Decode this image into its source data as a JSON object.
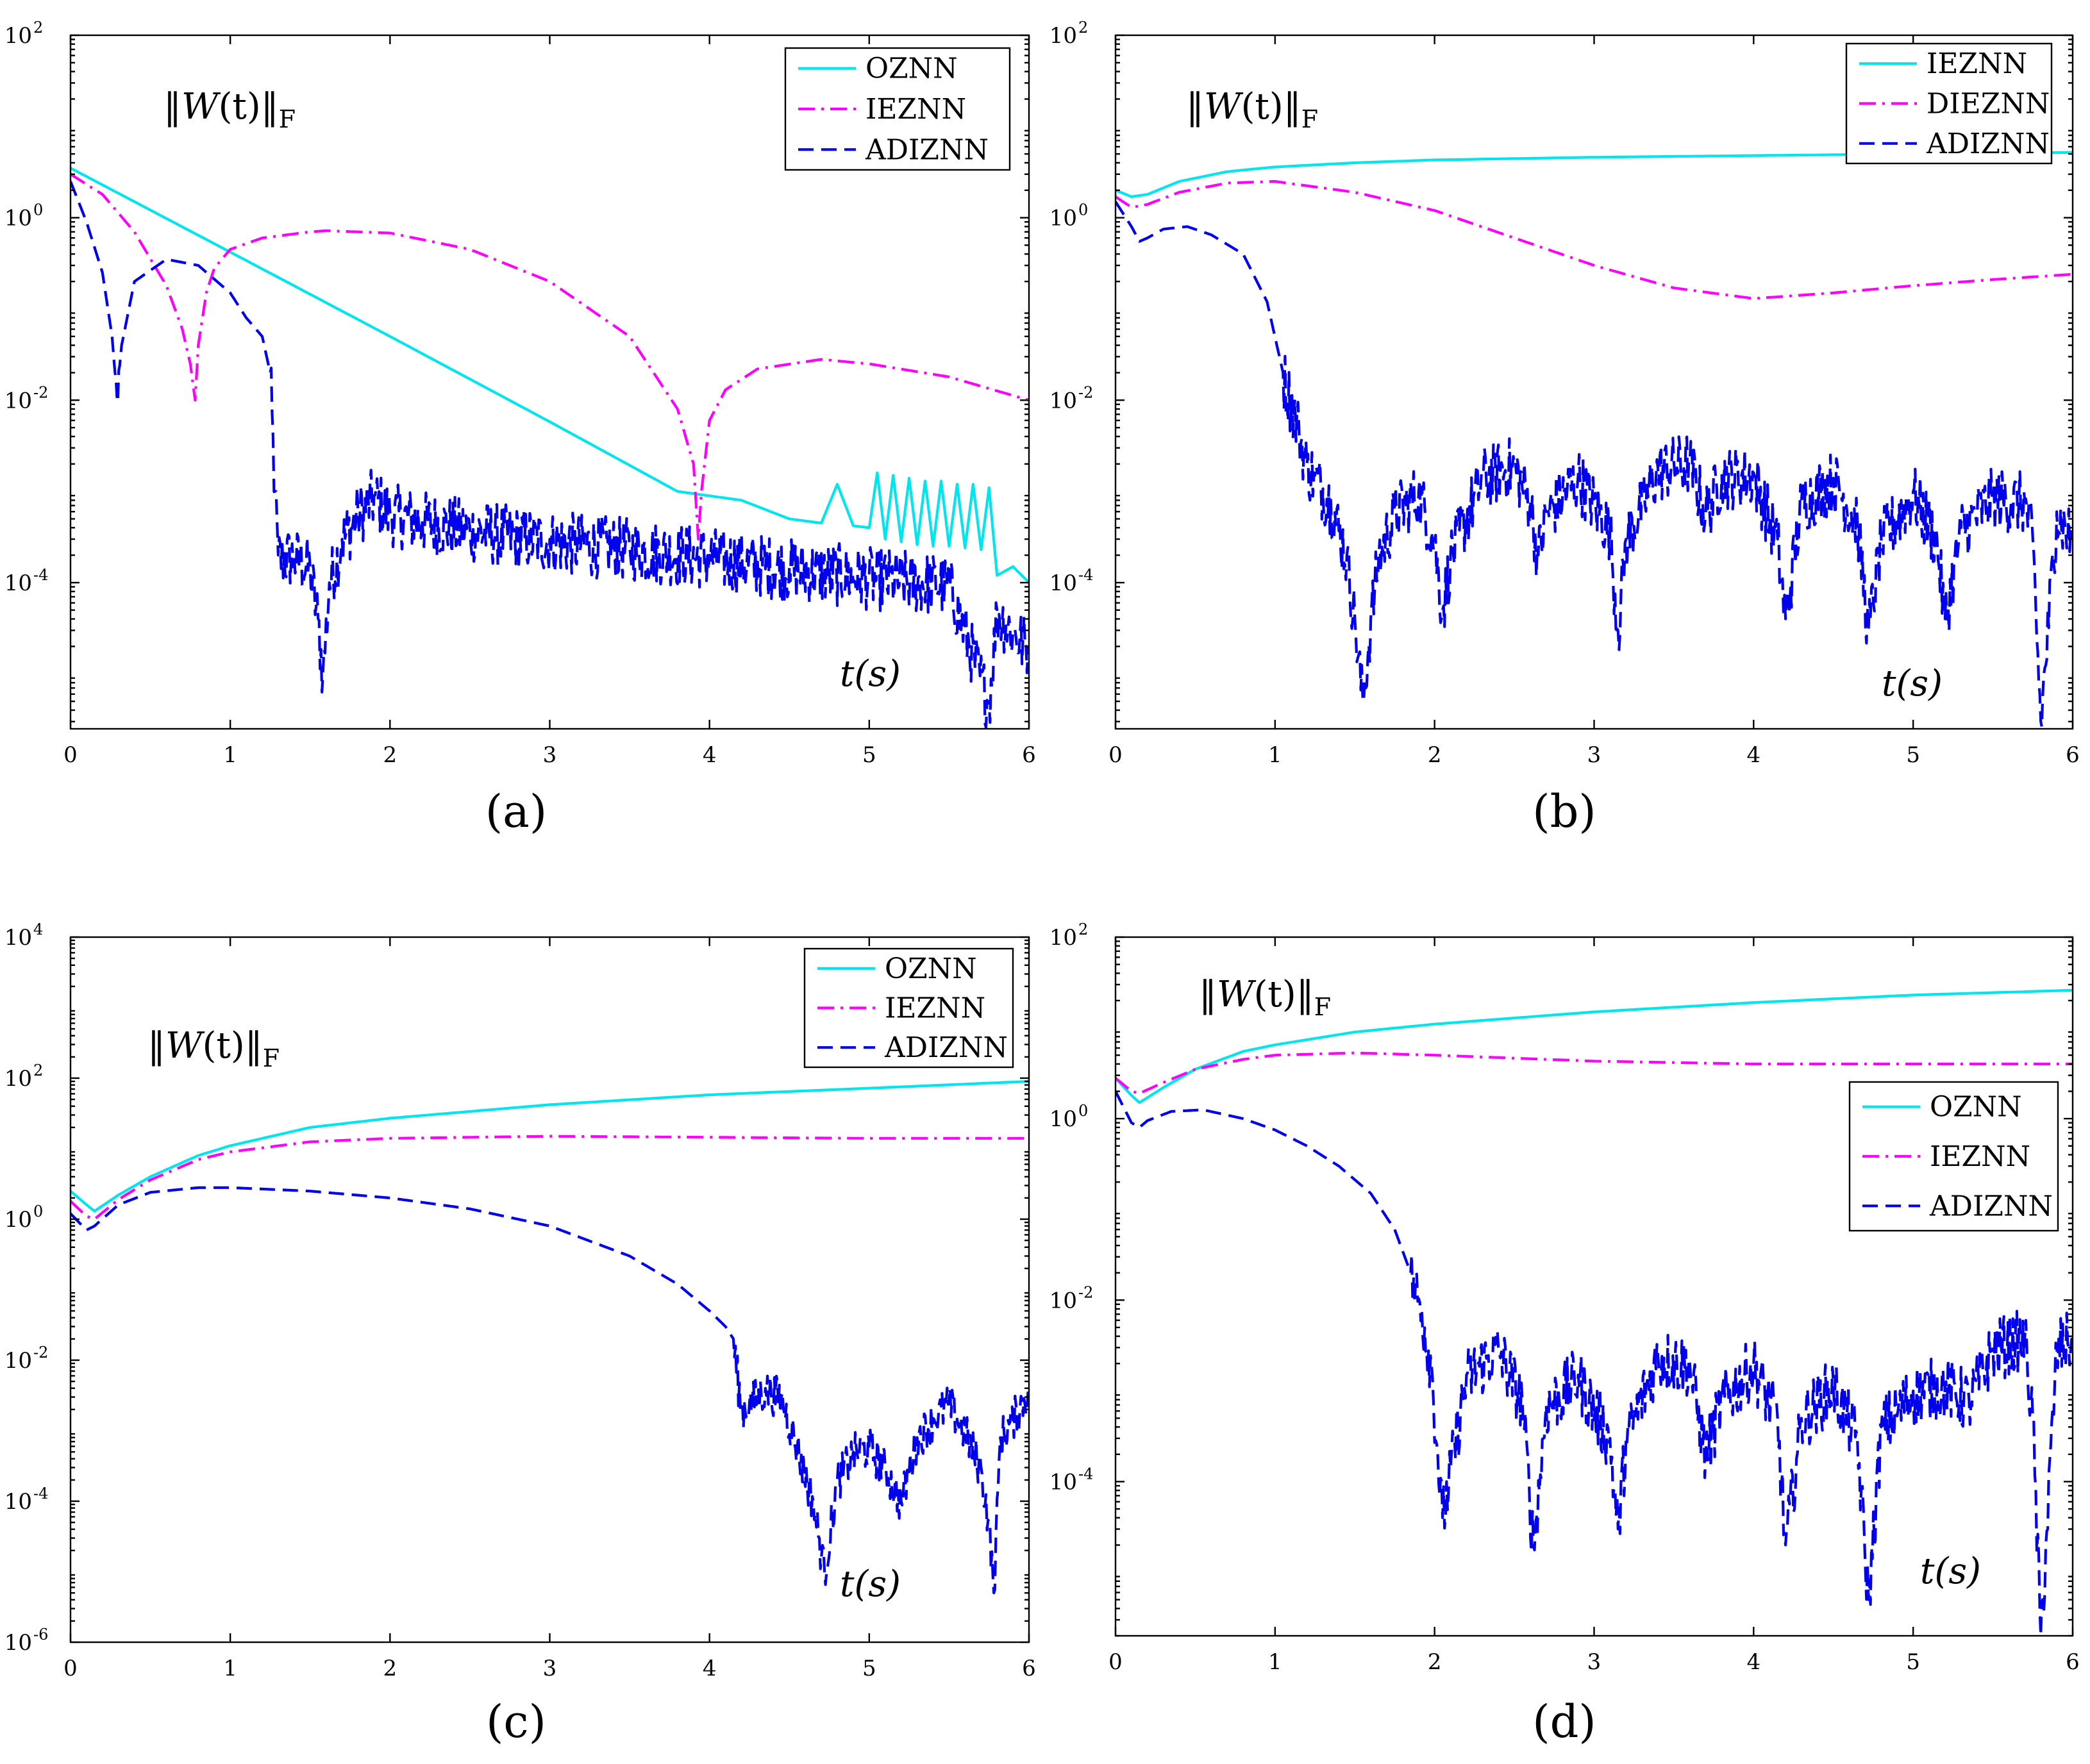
{
  "chart_data": [
    {
      "type": "line",
      "panel_label": "(a)",
      "y_scale": "log",
      "xlim": [
        0,
        6
      ],
      "ylim": [
        2.5e-06,
        100
      ],
      "x_ticks": [
        "0",
        "1",
        "2",
        "3",
        "4",
        "5",
        "6"
      ],
      "y_ticks": [
        {
          "base": "10",
          "exp": "2"
        },
        {
          "base": "10",
          "exp": "0"
        },
        {
          "base": "10",
          "exp": "-2"
        },
        {
          "base": "10",
          "exp": "-4"
        }
      ],
      "annotation": {
        "prefix": "‖",
        "var": "W",
        "arg": "(t)",
        "suffix": "‖",
        "sub": "F"
      },
      "time_label": "t(s)",
      "legend_position": "top-right",
      "series": [
        {
          "name": "OZNN",
          "color": "#00e5ee",
          "style": "solid",
          "x": [
            0,
            1,
            2,
            3,
            3.8,
            4.2,
            4.5,
            4.7,
            4.8,
            4.9,
            5.0,
            5.05,
            5.1,
            5.15,
            5.2,
            5.25,
            5.3,
            5.35,
            5.4,
            5.45,
            5.5,
            5.55,
            5.6,
            5.65,
            5.7,
            5.75,
            5.8,
            5.9,
            6.0
          ],
          "y": [
            3.5,
            0.42,
            0.05,
            0.0058,
            0.001,
            0.0008,
            0.0005,
            0.00045,
            0.0012,
            0.00042,
            0.0004,
            0.0016,
            0.0003,
            0.0015,
            0.00028,
            0.0014,
            0.00026,
            0.0013,
            0.00025,
            0.0013,
            0.00025,
            0.0012,
            0.00024,
            0.0012,
            0.00023,
            0.0011,
            0.00012,
            0.00015,
            0.0001
          ]
        },
        {
          "name": "IEZNN",
          "color": "#ff00ff",
          "style": "dashdot",
          "x": [
            0,
            0.2,
            0.4,
            0.6,
            0.7,
            0.75,
            0.78,
            0.8,
            0.85,
            0.9,
            1.0,
            1.2,
            1.5,
            1.6,
            2.0,
            2.5,
            3.0,
            3.5,
            3.8,
            3.9,
            3.93,
            3.95,
            4.0,
            4.1,
            4.3,
            4.7,
            5.0,
            5.5,
            6.0
          ],
          "y": [
            3.0,
            1.8,
            0.7,
            0.18,
            0.06,
            0.025,
            0.01,
            0.04,
            0.15,
            0.28,
            0.45,
            0.6,
            0.7,
            0.72,
            0.68,
            0.45,
            0.2,
            0.05,
            0.008,
            0.002,
            0.0003,
            0.001,
            0.006,
            0.013,
            0.022,
            0.028,
            0.025,
            0.018,
            0.01
          ]
        },
        {
          "name": "ADIZNN",
          "color": "#0000ee",
          "style": "dashed",
          "x": [
            0,
            0.1,
            0.2,
            0.26,
            0.29,
            0.32,
            0.4,
            0.6,
            0.8,
            1.0,
            1.1,
            1.2,
            1.25,
            1.28,
            1.3,
            1.4,
            1.5,
            1.55,
            1.58,
            1.62,
            1.7,
            1.8,
            1.9,
            2.0,
            2.2,
            2.5,
            3.0,
            3.5,
            4.0,
            4.5,
            5.0,
            5.5,
            5.75,
            5.8,
            5.9,
            6.0
          ],
          "y": [
            2.5,
            0.9,
            0.25,
            0.05,
            0.011,
            0.04,
            0.2,
            0.35,
            0.3,
            0.15,
            0.08,
            0.05,
            0.02,
            0.001,
            0.0002,
            0.0002,
            0.00015,
            4e-05,
            1e-05,
            0.0001,
            0.0003,
            0.0006,
            0.0009,
            0.0006,
            0.0005,
            0.0004,
            0.0003,
            0.00025,
            0.0002,
            0.00015,
            0.00012,
            0.0001,
            5e-06,
            5e-05,
            3e-05,
            2e-05
          ]
        }
      ],
      "noise": [
        0,
        0,
        0.7
      ]
    },
    {
      "type": "line",
      "panel_label": "(b)",
      "y_scale": "log",
      "xlim": [
        0,
        6
      ],
      "ylim": [
        2.5e-06,
        100
      ],
      "x_ticks": [
        "0",
        "1",
        "2",
        "3",
        "4",
        "5",
        "6"
      ],
      "y_ticks": [
        {
          "base": "10",
          "exp": "2"
        },
        {
          "base": "10",
          "exp": "0"
        },
        {
          "base": "10",
          "exp": "-2"
        },
        {
          "base": "10",
          "exp": "-4"
        }
      ],
      "annotation": {
        "prefix": "‖",
        "var": "W",
        "arg": "(t)",
        "suffix": "‖",
        "sub": "F"
      },
      "time_label": "t(s)",
      "legend_position": "top-right",
      "series": [
        {
          "name": "IEZNN",
          "color": "#00e5ee",
          "style": "solid",
          "x": [
            0,
            0.1,
            0.2,
            0.4,
            0.7,
            1.0,
            1.5,
            2.0,
            3.0,
            4.0,
            5.0,
            6.0
          ],
          "y": [
            2.0,
            1.7,
            1.8,
            2.5,
            3.2,
            3.6,
            4.0,
            4.3,
            4.6,
            4.8,
            5.0,
            5.2
          ]
        },
        {
          "name": "DIEZNN",
          "color": "#ff00ff",
          "style": "dashdot",
          "x": [
            0,
            0.1,
            0.2,
            0.4,
            0.7,
            1.0,
            1.5,
            2.0,
            2.5,
            3.0,
            3.5,
            4.0,
            4.5,
            5.0,
            5.5,
            6.0
          ],
          "y": [
            1.7,
            1.3,
            1.4,
            1.9,
            2.4,
            2.5,
            1.9,
            1.2,
            0.6,
            0.3,
            0.17,
            0.13,
            0.15,
            0.18,
            0.21,
            0.24
          ]
        },
        {
          "name": "ADIZNN",
          "color": "#0000ee",
          "style": "dashed",
          "x": [
            0,
            0.1,
            0.15,
            0.2,
            0.3,
            0.45,
            0.6,
            0.8,
            0.95,
            1.05,
            1.15,
            1.2,
            1.25,
            1.35,
            1.45,
            1.5,
            1.55,
            1.6,
            1.65,
            1.75,
            1.9,
            2.0,
            2.05,
            2.1,
            2.3,
            2.5,
            2.6,
            2.65,
            2.7,
            2.9,
            3.1,
            3.15,
            3.2,
            3.4,
            3.6,
            3.7,
            3.8,
            4.0,
            4.15,
            4.2,
            4.3,
            4.5,
            4.65,
            4.72,
            4.8,
            5.0,
            5.15,
            5.2,
            5.3,
            5.5,
            5.7,
            5.75,
            5.8,
            5.9,
            6.0
          ],
          "y": [
            1.5,
            0.8,
            0.55,
            0.6,
            0.75,
            0.8,
            0.65,
            0.4,
            0.12,
            0.02,
            0.005,
            0.002,
            0.0015,
            0.0008,
            0.0002,
            4e-05,
            5e-06,
            4e-05,
            0.0002,
            0.0006,
            0.001,
            0.0003,
            5e-05,
            0.0002,
            0.0015,
            0.002,
            0.0008,
            0.0002,
            0.0006,
            0.0015,
            0.0004,
            3e-05,
            0.0003,
            0.0018,
            0.0022,
            0.0006,
            0.0015,
            0.0016,
            0.0003,
            4e-05,
            0.0008,
            0.0014,
            0.0005,
            3e-05,
            0.0003,
            0.001,
            0.0003,
            4e-05,
            0.0004,
            0.0009,
            0.0008,
            0.0003,
            3e-06,
            0.0006,
            0.0003
          ]
        }
      ],
      "noise": [
        0,
        0,
        0.7
      ]
    },
    {
      "type": "line",
      "panel_label": "(c)",
      "y_scale": "log",
      "xlim": [
        0,
        6
      ],
      "ylim": [
        1e-06,
        10000
      ],
      "x_ticks": [
        "0",
        "1",
        "2",
        "3",
        "4",
        "5",
        "6"
      ],
      "y_ticks": [
        {
          "base": "10",
          "exp": "4"
        },
        {
          "base": "10",
          "exp": "2"
        },
        {
          "base": "10",
          "exp": "0"
        },
        {
          "base": "10",
          "exp": "-2"
        },
        {
          "base": "10",
          "exp": "-4"
        },
        {
          "base": "10",
          "exp": "-6"
        }
      ],
      "annotation": {
        "prefix": "‖",
        "var": "W",
        "arg": "(t)",
        "suffix": "‖",
        "sub": "F"
      },
      "time_label": "t(s)",
      "legend_position": "top-right",
      "series": [
        {
          "name": "OZNN",
          "color": "#00e5ee",
          "style": "solid",
          "x": [
            0,
            0.1,
            0.15,
            0.3,
            0.5,
            0.8,
            1.0,
            1.5,
            2.0,
            3.0,
            4.0,
            5.0,
            6.0
          ],
          "y": [
            2.5,
            1.6,
            1.3,
            2.2,
            4.0,
            8.0,
            11,
            20,
            27,
            42,
            58,
            72,
            90
          ]
        },
        {
          "name": "IEZNN",
          "color": "#ff00ff",
          "style": "dashdot",
          "x": [
            0,
            0.1,
            0.15,
            0.3,
            0.5,
            0.8,
            1.0,
            1.5,
            2.0,
            3.0,
            4.0,
            5.0,
            6.0
          ],
          "y": [
            1.8,
            1.1,
            1.0,
            1.9,
            3.6,
            7.0,
            9.0,
            12.5,
            14,
            15,
            14.5,
            14,
            14
          ]
        },
        {
          "name": "ADIZNN",
          "color": "#0000ee",
          "style": "dashed",
          "x": [
            0,
            0.1,
            0.15,
            0.3,
            0.5,
            0.8,
            1.0,
            1.5,
            2.0,
            2.5,
            3.0,
            3.5,
            3.8,
            4.0,
            4.1,
            4.15,
            4.2,
            4.25,
            4.35,
            4.45,
            4.55,
            4.65,
            4.72,
            4.8,
            4.9,
            5.0,
            5.1,
            5.2,
            5.3,
            5.4,
            5.5,
            5.6,
            5.7,
            5.75,
            5.78,
            5.82,
            5.9,
            6.0
          ],
          "y": [
            1.2,
            0.7,
            0.8,
            1.6,
            2.4,
            2.8,
            2.8,
            2.5,
            2.0,
            1.4,
            0.8,
            0.3,
            0.12,
            0.05,
            0.03,
            0.02,
            0.002,
            0.0025,
            0.004,
            0.003,
            0.0006,
            0.0001,
            1e-05,
            0.0002,
            0.0005,
            0.0006,
            0.0003,
            0.0001,
            0.0008,
            0.0015,
            0.0025,
            0.001,
            0.0003,
            5e-05,
            5e-06,
            0.0008,
            0.0015,
            0.004
          ]
        }
      ],
      "noise": [
        0,
        0,
        0.6
      ]
    },
    {
      "type": "line",
      "panel_label": "(d)",
      "y_scale": "log",
      "xlim": [
        0,
        6
      ],
      "ylim": [
        2e-06,
        100
      ],
      "x_ticks": [
        "0",
        "1",
        "2",
        "3",
        "4",
        "5",
        "6"
      ],
      "y_ticks": [
        {
          "base": "10",
          "exp": "2"
        },
        {
          "base": "10",
          "exp": "0"
        },
        {
          "base": "10",
          "exp": "-2"
        },
        {
          "base": "10",
          "exp": "-4"
        }
      ],
      "annotation": {
        "prefix": "‖",
        "var": "W",
        "arg": "(t)",
        "suffix": "‖",
        "sub": "F"
      },
      "time_label": "t(s)",
      "legend_position": "right",
      "series": [
        {
          "name": "OZNN",
          "color": "#00e5ee",
          "style": "solid",
          "x": [
            0,
            0.1,
            0.15,
            0.3,
            0.5,
            0.8,
            1.0,
            1.5,
            2.0,
            3.0,
            4.0,
            5.0,
            6.0
          ],
          "y": [
            2.8,
            1.8,
            1.5,
            2.2,
            3.5,
            5.5,
            6.5,
            9,
            11,
            15,
            19,
            23,
            26
          ]
        },
        {
          "name": "IEZNN",
          "color": "#ff00ff",
          "style": "dashdot",
          "x": [
            0,
            0.1,
            0.15,
            0.3,
            0.5,
            0.8,
            1.0,
            1.5,
            2.0,
            3.0,
            4.0,
            5.0,
            6.0
          ],
          "y": [
            2.8,
            2.0,
            1.9,
            2.5,
            3.5,
            4.5,
            5.0,
            5.3,
            5.0,
            4.3,
            4.0,
            4.0,
            4.0
          ]
        },
        {
          "name": "ADIZNN",
          "color": "#0000ee",
          "style": "dashed",
          "x": [
            0,
            0.1,
            0.15,
            0.2,
            0.35,
            0.55,
            0.8,
            1.0,
            1.2,
            1.4,
            1.6,
            1.75,
            1.85,
            1.92,
            1.98,
            2.02,
            2.05,
            2.2,
            2.4,
            2.55,
            2.62,
            2.7,
            2.9,
            3.1,
            3.15,
            3.2,
            3.4,
            3.6,
            3.7,
            3.8,
            4.0,
            4.15,
            4.2,
            4.3,
            4.5,
            4.65,
            4.72,
            4.8,
            5.0,
            5.2,
            5.35,
            5.5,
            5.7,
            5.75,
            5.8,
            5.9,
            6.0
          ],
          "y": [
            2.0,
            0.9,
            0.8,
            0.95,
            1.2,
            1.25,
            1.0,
            0.75,
            0.5,
            0.3,
            0.15,
            0.06,
            0.02,
            0.008,
            0.002,
            0.0002,
            4e-05,
            0.0015,
            0.003,
            0.0008,
            2e-05,
            0.0007,
            0.0015,
            0.0003,
            3e-05,
            0.0003,
            0.0025,
            0.002,
            0.0002,
            0.0008,
            0.002,
            0.0005,
            2e-05,
            0.0005,
            0.0012,
            0.0003,
            5e-06,
            0.0004,
            0.001,
            0.0012,
            0.0008,
            0.003,
            0.004,
            0.0005,
            2e-06,
            0.003,
            0.004
          ]
        }
      ],
      "noise": [
        0,
        0,
        0.7
      ]
    }
  ]
}
